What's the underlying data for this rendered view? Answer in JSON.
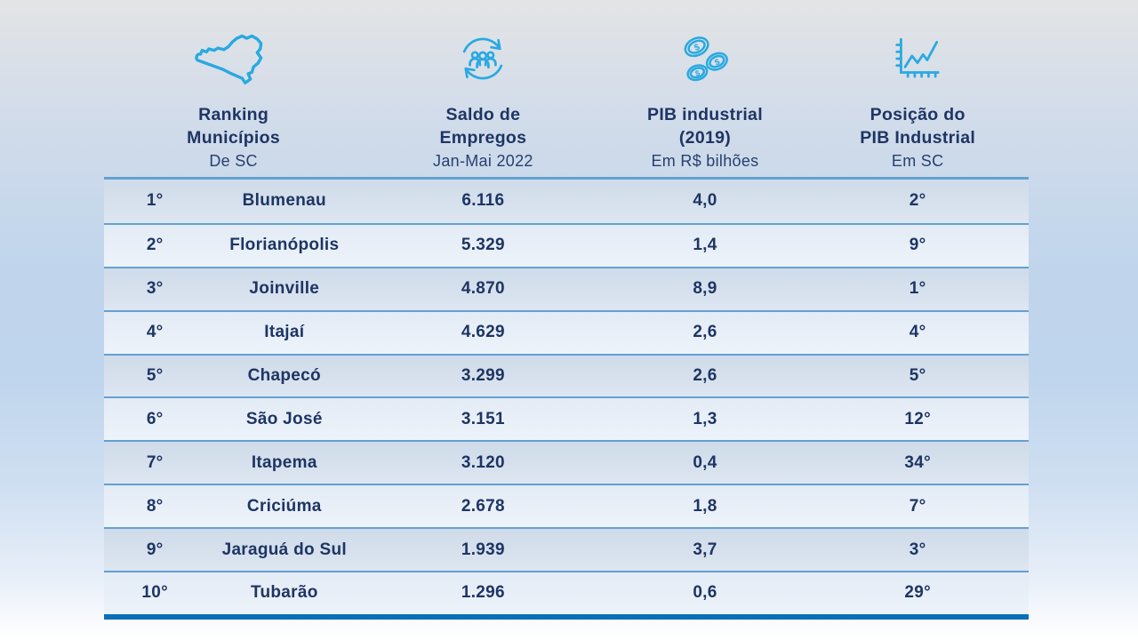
{
  "header": {
    "columns": [
      {
        "icon": "sc-map-icon",
        "title_lines": [
          "Ranking",
          "Municípios"
        ],
        "subtitle": "De SC"
      },
      {
        "icon": "people-cycle-icon",
        "title_lines": [
          "Saldo de",
          "Empregos"
        ],
        "subtitle": "Jan-Mai 2022"
      },
      {
        "icon": "coins-icon",
        "title_lines": [
          "PIB industrial",
          "(2019)"
        ],
        "subtitle": "Em R$ bilhões"
      },
      {
        "icon": "chart-icon",
        "title_lines": [
          "Posição do",
          "PIB Industrial"
        ],
        "subtitle": "Em SC"
      }
    ]
  },
  "rows": [
    {
      "rank": "1°",
      "municipality": "Blumenau",
      "saldo_empregos": "6.116",
      "pib_industrial": "4,0",
      "posicao_pib": "2°"
    },
    {
      "rank": "2°",
      "municipality": "Florianópolis",
      "saldo_empregos": "5.329",
      "pib_industrial": "1,4",
      "posicao_pib": "9°"
    },
    {
      "rank": "3°",
      "municipality": "Joinville",
      "saldo_empregos": "4.870",
      "pib_industrial": "8,9",
      "posicao_pib": "1°"
    },
    {
      "rank": "4°",
      "municipality": "Itajaí",
      "saldo_empregos": "4.629",
      "pib_industrial": "2,6",
      "posicao_pib": "4°"
    },
    {
      "rank": "5°",
      "municipality": "Chapecó",
      "saldo_empregos": "3.299",
      "pib_industrial": "2,6",
      "posicao_pib": "5°"
    },
    {
      "rank": "6°",
      "municipality": "São José",
      "saldo_empregos": "3.151",
      "pib_industrial": "1,3",
      "posicao_pib": "12°"
    },
    {
      "rank": "7°",
      "municipality": "Itapema",
      "saldo_empregos": "3.120",
      "pib_industrial": "0,4",
      "posicao_pib": "34°"
    },
    {
      "rank": "8°",
      "municipality": "Criciúma",
      "saldo_empregos": "2.678",
      "pib_industrial": "1,8",
      "posicao_pib": "7°"
    },
    {
      "rank": "9°",
      "municipality": "Jaraguá do Sul",
      "saldo_empregos": "1.939",
      "pib_industrial": "3,7",
      "posicao_pib": "3°"
    },
    {
      "rank": "10°",
      "municipality": "Tubarão",
      "saldo_empregos": "1.296",
      "pib_industrial": "0,6",
      "posicao_pib": "29°"
    }
  ],
  "chart_data": {
    "type": "table",
    "columns": [
      "Ranking Municípios De SC",
      "Município",
      "Saldo de Empregos Jan-Mai 2022",
      "PIB industrial (2019) Em R$ bilhões",
      "Posição do PIB Industrial Em SC"
    ],
    "rows": [
      [
        "1°",
        "Blumenau",
        "6.116",
        "4,0",
        "2°"
      ],
      [
        "2°",
        "Florianópolis",
        "5.329",
        "1,4",
        "9°"
      ],
      [
        "3°",
        "Joinville",
        "4.870",
        "8,9",
        "1°"
      ],
      [
        "4°",
        "Itajaí",
        "4.629",
        "2,6",
        "4°"
      ],
      [
        "5°",
        "Chapecó",
        "3.299",
        "2,6",
        "5°"
      ],
      [
        "6°",
        "São José",
        "3.151",
        "1,3",
        "12°"
      ],
      [
        "7°",
        "Itapema",
        "3.120",
        "0,4",
        "34°"
      ],
      [
        "8°",
        "Criciúma",
        "2.678",
        "1,8",
        "7°"
      ],
      [
        "9°",
        "Jaraguá do Sul",
        "1.939",
        "3,7",
        "3°"
      ],
      [
        "10°",
        "Tubarão",
        "1.296",
        "0,6",
        "29°"
      ]
    ],
    "numeric": {
      "ranking": [
        1,
        2,
        3,
        4,
        5,
        6,
        7,
        8,
        9,
        10
      ],
      "saldo_empregos_jan_mai_2022": [
        6116,
        5329,
        4870,
        4629,
        3299,
        3151,
        3120,
        2678,
        1939,
        1296
      ],
      "pib_industrial_2019_bilhoes": [
        4.0,
        1.4,
        8.9,
        2.6,
        2.6,
        1.3,
        0.4,
        1.8,
        3.7,
        0.6
      ],
      "posicao_pib_industrial_sc": [
        2,
        9,
        1,
        4,
        5,
        12,
        34,
        7,
        3,
        29
      ]
    }
  },
  "colors": {
    "icon_accent": "#29a9e1",
    "header_text": "#1e3564",
    "cell_text": "#1e3564",
    "row_odd": "#d4dfeb",
    "row_even": "#e7eef7",
    "separator": "#64a0d2",
    "bottom_bar": "#0a6fb8"
  }
}
